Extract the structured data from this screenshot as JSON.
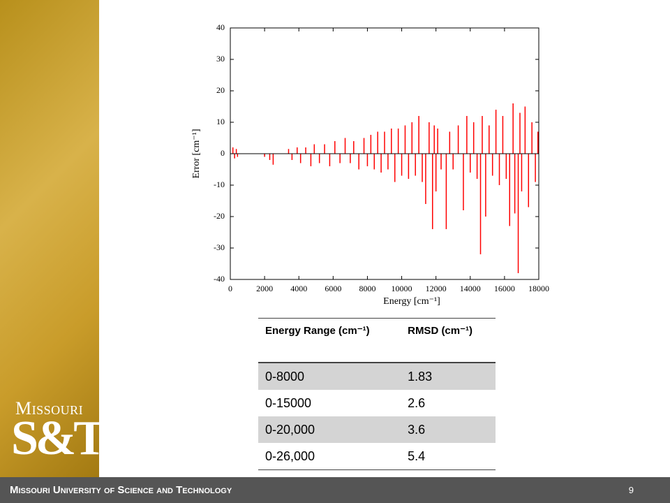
{
  "chart_data": {
    "type": "stem",
    "xlabel": "Energy [cm⁻¹]",
    "ylabel": "Error [cm⁻¹]",
    "color": "#ff0000",
    "x": [
      150,
      250,
      350,
      420,
      2000,
      2300,
      2500,
      3400,
      3600,
      3900,
      4100,
      4400,
      4700,
      4900,
      5200,
      5500,
      5800,
      6100,
      6400,
      6700,
      7000,
      7200,
      7500,
      7800,
      8000,
      8200,
      8400,
      8600,
      8800,
      9000,
      9200,
      9400,
      9600,
      9800,
      10000,
      10200,
      10400,
      10600,
      10800,
      11000,
      11200,
      11400,
      11600,
      11800,
      11900,
      12000,
      12100,
      12300,
      12600,
      12800,
      13000,
      13300,
      13600,
      13800,
      14000,
      14200,
      14400,
      14600,
      14700,
      14900,
      15100,
      15300,
      15500,
      15700,
      15900,
      16100,
      16300,
      16500,
      16600,
      16800,
      16900,
      17000,
      17200,
      17400,
      17600,
      17800,
      17950
    ],
    "values": [
      2,
      -1.5,
      1.5,
      -1,
      -1,
      -2,
      -3.5,
      1.5,
      -2,
      2,
      -3,
      2,
      -4,
      3,
      -3,
      3,
      -4,
      4,
      -3,
      5,
      -3,
      4,
      -5,
      5,
      -4,
      6,
      -5,
      7,
      -6,
      7,
      -5,
      8,
      -9,
      8,
      -7,
      9,
      -8,
      10,
      -7,
      12,
      -9,
      -16,
      10,
      -24,
      9,
      -12,
      8,
      -5,
      -24,
      7,
      -5,
      9,
      -18,
      12,
      -6,
      10,
      -8,
      -32,
      12,
      -20,
      9,
      -7,
      14,
      -10,
      12,
      -8,
      -23,
      16,
      -19,
      -38,
      13,
      -12,
      15,
      -17,
      10,
      -9,
      7
    ],
    "xlim": [
      0,
      18000
    ],
    "xticks": [
      0,
      2000,
      4000,
      6000,
      8000,
      10000,
      12000,
      14000,
      16000,
      18000
    ],
    "ylim": [
      -40,
      40
    ],
    "yticks": [
      -40,
      -30,
      -20,
      -10,
      0,
      10,
      20,
      30,
      40
    ]
  },
  "table": {
    "header": [
      "Energy Range (cm⁻¹)",
      "RMSD (cm⁻¹)"
    ],
    "rows": [
      [
        "0-8000",
        "1.83"
      ],
      [
        "0-15000",
        "2.6"
      ],
      [
        "0-20,000",
        "3.6"
      ],
      [
        "0-26,000",
        "5.4"
      ]
    ]
  },
  "logo": {
    "top": "Missouri",
    "bottom": "S&T"
  },
  "footer": {
    "title": "Missouri University of Science and Technology",
    "page": "9"
  }
}
